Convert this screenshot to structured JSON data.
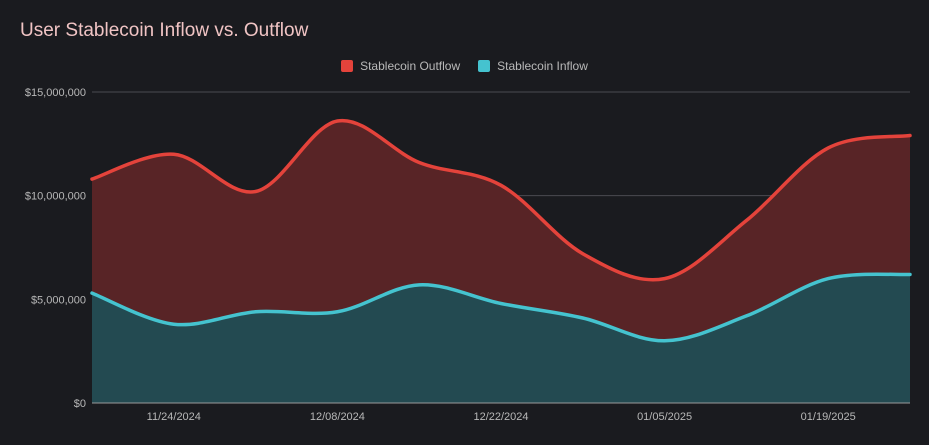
{
  "chart_data": {
    "type": "area",
    "title": "User Stablecoin Inflow vs. Outflow",
    "xlabel": "",
    "ylabel": "",
    "ylim": [
      0,
      15000000
    ],
    "y_ticks": [
      0,
      5000000,
      10000000,
      15000000
    ],
    "y_tick_labels": [
      "$0",
      "$5,000,000",
      "$10,000,000",
      "$15,000,000"
    ],
    "x_tick_labels": [
      "11/24/2024",
      "12/08/2024",
      "12/22/2024",
      "01/05/2025",
      "01/19/2025"
    ],
    "x_tick_index": [
      1,
      3,
      5,
      7,
      9
    ],
    "series": [
      {
        "name": "Stablecoin Outflow",
        "color": "#e4433b",
        "fill": "#582426",
        "values": [
          10800000,
          12000000,
          10200000,
          13600000,
          11600000,
          10500000,
          7200000,
          6000000,
          8800000,
          12300000,
          12900000
        ]
      },
      {
        "name": "Stablecoin Inflow",
        "color": "#45c3cf",
        "fill": "#234a51",
        "values": [
          5300000,
          3800000,
          4400000,
          4400000,
          5700000,
          4800000,
          4100000,
          3000000,
          4200000,
          6000000,
          6200000
        ]
      }
    ],
    "legend": [
      "Stablecoin Outflow",
      "Stablecoin Inflow"
    ],
    "grid": true,
    "legend_position": "top-center"
  }
}
